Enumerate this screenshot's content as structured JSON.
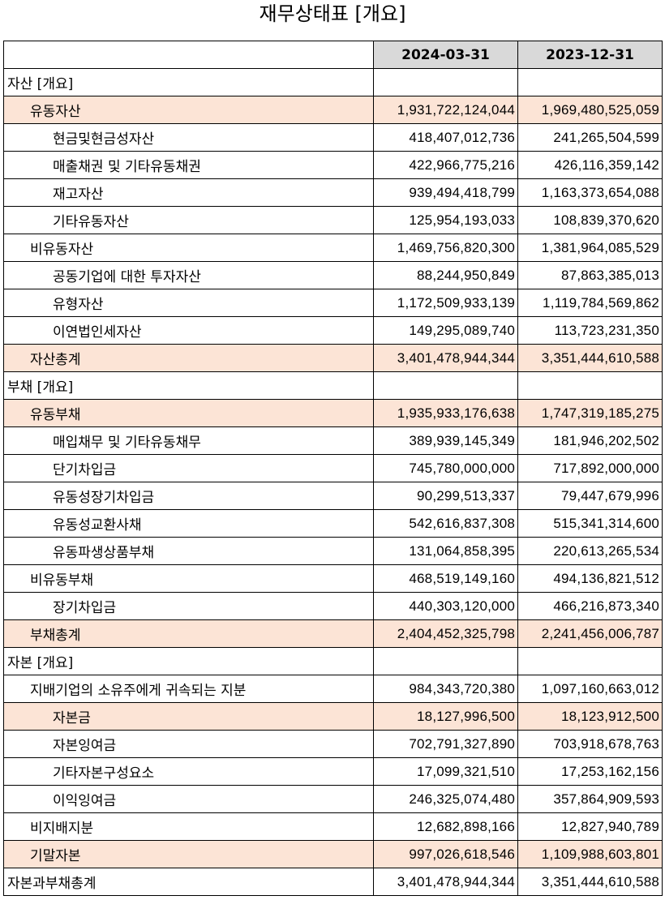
{
  "title": "재무상태표 [개요]",
  "columns": [
    "",
    "2024-03-31",
    "2023-12-31"
  ],
  "colors": {
    "header_bg": "#d9d9d9",
    "highlight_bg": "#fce4d6",
    "border": "#000000"
  },
  "rows": [
    {
      "label": "자산 [개요]",
      "level": 0,
      "highlight": false,
      "v1": "",
      "v2": ""
    },
    {
      "label": "유동자산",
      "level": 1,
      "highlight": true,
      "v1": "1,931,722,124,044",
      "v2": "1,969,480,525,059"
    },
    {
      "label": "현금및현금성자산",
      "level": 2,
      "highlight": false,
      "v1": "418,407,012,736",
      "v2": "241,265,504,599"
    },
    {
      "label": "매출채권 및 기타유동채권",
      "level": 2,
      "highlight": false,
      "v1": "422,966,775,216",
      "v2": "426,116,359,142"
    },
    {
      "label": "재고자산",
      "level": 2,
      "highlight": false,
      "v1": "939,494,418,799",
      "v2": "1,163,373,654,088"
    },
    {
      "label": "기타유동자산",
      "level": 2,
      "highlight": false,
      "v1": "125,954,193,033",
      "v2": "108,839,370,620"
    },
    {
      "label": "비유동자산",
      "level": 1,
      "highlight": false,
      "v1": "1,469,756,820,300",
      "v2": "1,381,964,085,529"
    },
    {
      "label": "공동기업에 대한 투자자산",
      "level": 2,
      "highlight": false,
      "v1": "88,244,950,849",
      "v2": "87,863,385,013"
    },
    {
      "label": "유형자산",
      "level": 2,
      "highlight": false,
      "v1": "1,172,509,933,139",
      "v2": "1,119,784,569,862"
    },
    {
      "label": "이연법인세자산",
      "level": 2,
      "highlight": false,
      "v1": "149,295,089,740",
      "v2": "113,723,231,350"
    },
    {
      "label": "자산총계",
      "level": 1,
      "highlight": true,
      "v1": "3,401,478,944,344",
      "v2": "3,351,444,610,588"
    },
    {
      "label": "부채 [개요]",
      "level": 0,
      "highlight": false,
      "v1": "",
      "v2": ""
    },
    {
      "label": "유동부채",
      "level": 1,
      "highlight": true,
      "v1": "1,935,933,176,638",
      "v2": "1,747,319,185,275"
    },
    {
      "label": "매입채무 및 기타유동채무",
      "level": 2,
      "highlight": false,
      "v1": "389,939,145,349",
      "v2": "181,946,202,502"
    },
    {
      "label": "단기차입금",
      "level": 2,
      "highlight": false,
      "v1": "745,780,000,000",
      "v2": "717,892,000,000"
    },
    {
      "label": "유동성장기차입금",
      "level": 2,
      "highlight": false,
      "v1": "90,299,513,337",
      "v2": "79,447,679,996"
    },
    {
      "label": "유동성교환사채",
      "level": 2,
      "highlight": false,
      "v1": "542,616,837,308",
      "v2": "515,341,314,600"
    },
    {
      "label": "유동파생상품부채",
      "level": 2,
      "highlight": false,
      "v1": "131,064,858,395",
      "v2": "220,613,265,534"
    },
    {
      "label": "비유동부채",
      "level": 1,
      "highlight": false,
      "v1": "468,519,149,160",
      "v2": "494,136,821,512"
    },
    {
      "label": "장기차입금",
      "level": 2,
      "highlight": false,
      "v1": "440,303,120,000",
      "v2": "466,216,873,340"
    },
    {
      "label": "부채총계",
      "level": 1,
      "highlight": true,
      "v1": "2,404,452,325,798",
      "v2": "2,241,456,006,787"
    },
    {
      "label": "자본 [개요]",
      "level": 0,
      "highlight": false,
      "v1": "",
      "v2": ""
    },
    {
      "label": "지배기업의 소유주에게 귀속되는 지분",
      "level": 1,
      "highlight": false,
      "v1": "984,343,720,380",
      "v2": "1,097,160,663,012"
    },
    {
      "label": "자본금",
      "level": 2,
      "highlight": true,
      "v1": "18,127,996,500",
      "v2": "18,123,912,500"
    },
    {
      "label": "자본잉여금",
      "level": 2,
      "highlight": false,
      "v1": "702,791,327,890",
      "v2": "703,918,678,763"
    },
    {
      "label": "기타자본구성요소",
      "level": 2,
      "highlight": false,
      "v1": "17,099,321,510",
      "v2": "17,253,162,156"
    },
    {
      "label": "이익잉여금",
      "level": 2,
      "highlight": false,
      "v1": "246,325,074,480",
      "v2": "357,864,909,593"
    },
    {
      "label": "비지배지분",
      "level": 1,
      "highlight": false,
      "v1": "12,682,898,166",
      "v2": "12,827,940,789"
    },
    {
      "label": "기말자본",
      "level": 1,
      "highlight": true,
      "v1": "997,026,618,546",
      "v2": "1,109,988,603,801"
    },
    {
      "label": "자본과부채총계",
      "level": 0,
      "highlight": false,
      "v1": "3,401,478,944,344",
      "v2": "3,351,444,610,588"
    }
  ]
}
